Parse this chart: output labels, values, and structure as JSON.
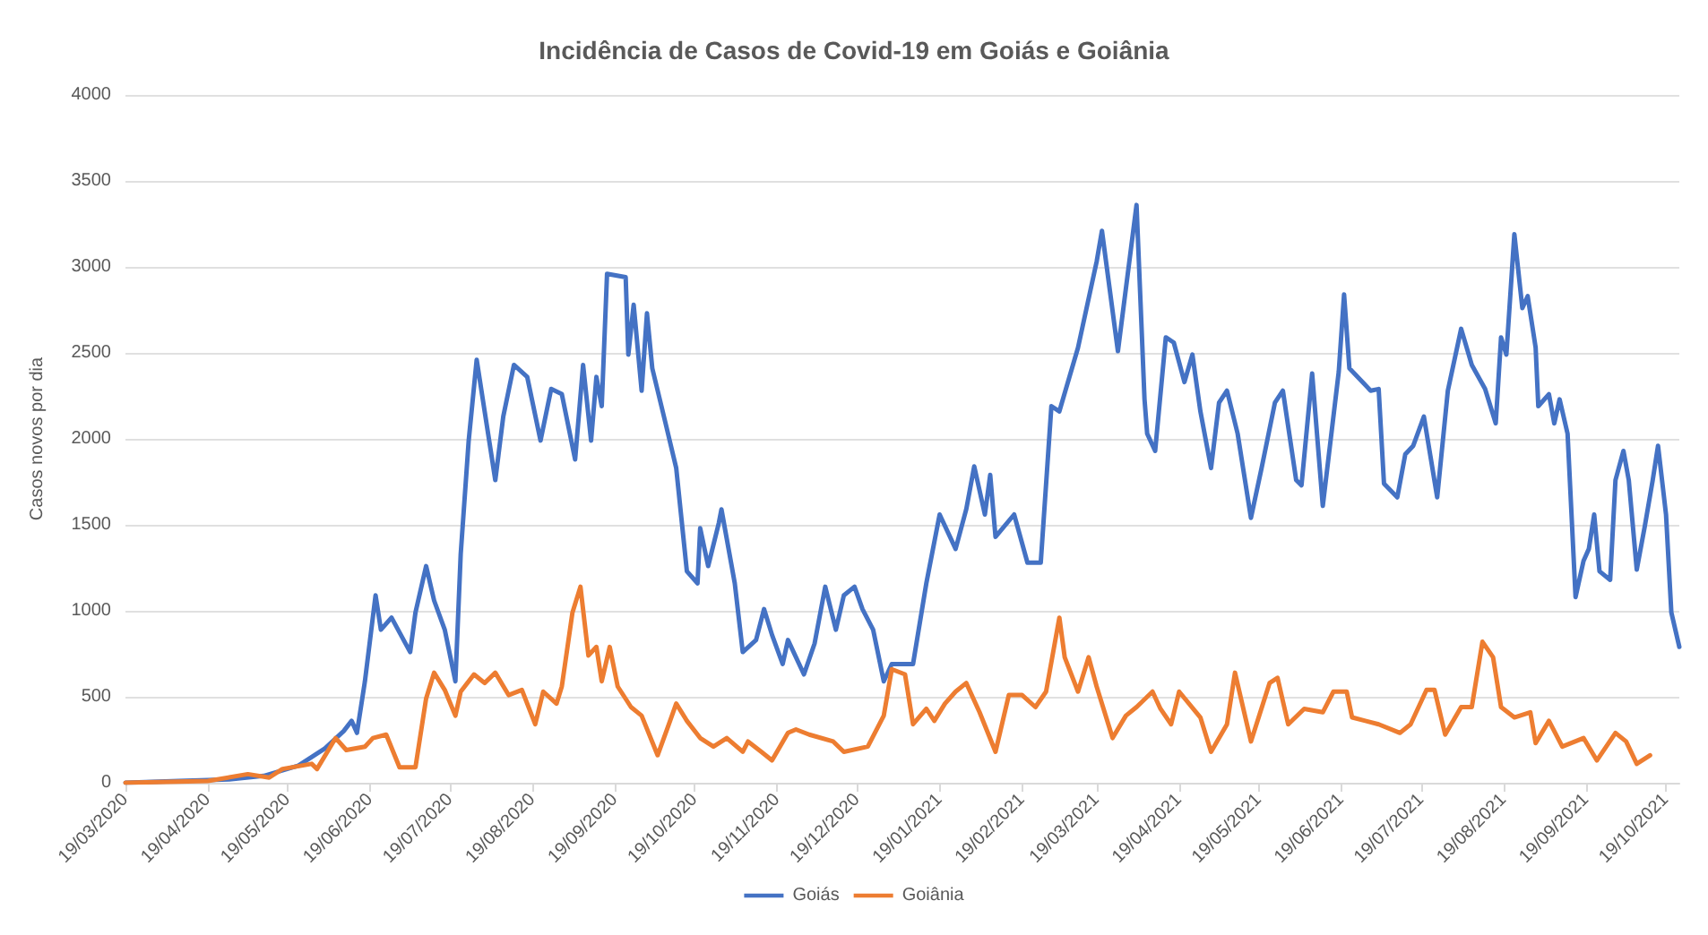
{
  "chart_data": {
    "type": "line",
    "title": "Incidência de Casos de Covid-19 em Goiás e Goiânia",
    "ylabel": "Casos novos por dia",
    "xlim": [
      "2020-03-19",
      "2021-10-24"
    ],
    "xticks": [
      {
        "value": "2020-03-19",
        "label": "19/03/2020"
      },
      {
        "value": "2020-04-19",
        "label": "19/04/2020"
      },
      {
        "value": "2020-05-19",
        "label": "19/05/2020"
      },
      {
        "value": "2020-06-19",
        "label": "19/06/2020"
      },
      {
        "value": "2020-07-19",
        "label": "19/07/2020"
      },
      {
        "value": "2020-08-19",
        "label": "19/08/2020"
      },
      {
        "value": "2020-09-19",
        "label": "19/09/2020"
      },
      {
        "value": "2020-10-19",
        "label": "19/10/2020"
      },
      {
        "value": "2020-11-19",
        "label": "19/11/2020"
      },
      {
        "value": "2020-12-19",
        "label": "19/12/2020"
      },
      {
        "value": "2021-01-19",
        "label": "19/01/2021"
      },
      {
        "value": "2021-02-19",
        "label": "19/02/2021"
      },
      {
        "value": "2021-03-19",
        "label": "19/03/2021"
      },
      {
        "value": "2021-04-19",
        "label": "19/04/2021"
      },
      {
        "value": "2021-05-19",
        "label": "19/05/2021"
      },
      {
        "value": "2021-06-19",
        "label": "19/06/2021"
      },
      {
        "value": "2021-07-19",
        "label": "19/07/2021"
      },
      {
        "value": "2021-08-19",
        "label": "19/08/2021"
      },
      {
        "value": "2021-09-19",
        "label": "19/09/2021"
      },
      {
        "value": "2021-10-19",
        "label": "19/10/2021"
      }
    ],
    "ylim": [
      0,
      4000
    ],
    "yticks": [
      0,
      500,
      1000,
      1500,
      2000,
      2500,
      3000,
      3500,
      4000
    ],
    "grid": "y",
    "legend": "bottom",
    "marker": "none",
    "line_style": "solid",
    "series": [
      {
        "name": "Goiás",
        "color": "#4472c4",
        "x": [
          "2020-03-19",
          "2020-04-08",
          "2020-04-27",
          "2020-05-10",
          "2020-05-23",
          "2020-06-02",
          "2020-06-09",
          "2020-06-12",
          "2020-06-14",
          "2020-06-17",
          "2020-06-21",
          "2020-06-23",
          "2020-06-27",
          "2020-07-04",
          "2020-07-06",
          "2020-07-10",
          "2020-07-13",
          "2020-07-17",
          "2020-07-21",
          "2020-07-23",
          "2020-07-26",
          "2020-07-29",
          "2020-08-01",
          "2020-08-05",
          "2020-08-08",
          "2020-08-12",
          "2020-08-17",
          "2020-08-22",
          "2020-08-26",
          "2020-08-30",
          "2020-09-04",
          "2020-09-07",
          "2020-09-10",
          "2020-09-12",
          "2020-09-14",
          "2020-09-16",
          "2020-09-23",
          "2020-09-24",
          "2020-09-26",
          "2020-09-29",
          "2020-10-01",
          "2020-10-03",
          "2020-10-08",
          "2020-10-12",
          "2020-10-16",
          "2020-10-20",
          "2020-10-21",
          "2020-10-24",
          "2020-10-28",
          "2020-10-29",
          "2020-11-03",
          "2020-11-06",
          "2020-11-11",
          "2020-11-14",
          "2020-11-17",
          "2020-11-21",
          "2020-11-23",
          "2020-11-29",
          "2020-12-03",
          "2020-12-07",
          "2020-12-11",
          "2020-12-14",
          "2020-12-18",
          "2020-12-21",
          "2020-12-25",
          "2020-12-29",
          "2021-01-01",
          "2021-01-09",
          "2021-01-14",
          "2021-01-19",
          "2021-01-25",
          "2021-01-29",
          "2021-02-01",
          "2021-02-05",
          "2021-02-07",
          "2021-02-09",
          "2021-02-16",
          "2021-02-21",
          "2021-02-26",
          "2021-03-02",
          "2021-03-05",
          "2021-03-12",
          "2021-03-19",
          "2021-03-21",
          "2021-03-27",
          "2021-04-03",
          "2021-04-06",
          "2021-04-07",
          "2021-04-10",
          "2021-04-14",
          "2021-04-17",
          "2021-04-21",
          "2021-04-24",
          "2021-04-27",
          "2021-05-01",
          "2021-05-04",
          "2021-05-07",
          "2021-05-11",
          "2021-05-16",
          "2021-05-20",
          "2021-05-25",
          "2021-05-28",
          "2021-06-02",
          "2021-06-04",
          "2021-06-08",
          "2021-06-12",
          "2021-06-18",
          "2021-06-20",
          "2021-06-22",
          "2021-06-30",
          "2021-07-03",
          "2021-07-05",
          "2021-07-10",
          "2021-07-13",
          "2021-07-16",
          "2021-07-20",
          "2021-07-25",
          "2021-07-29",
          "2021-08-03",
          "2021-08-07",
          "2021-08-12",
          "2021-08-16",
          "2021-08-18",
          "2021-08-20",
          "2021-08-23",
          "2021-08-26",
          "2021-08-28",
          "2021-08-31",
          "2021-09-01",
          "2021-09-05",
          "2021-09-07",
          "2021-09-09",
          "2021-09-12",
          "2021-09-15",
          "2021-09-18",
          "2021-09-20",
          "2021-09-22",
          "2021-09-24",
          "2021-09-28",
          "2021-09-30",
          "2021-10-03",
          "2021-10-05",
          "2021-10-08",
          "2021-10-11",
          "2021-10-14",
          "2021-10-16",
          "2021-10-19",
          "2021-10-21",
          "2021-10-24"
        ],
        "values": [
          0,
          10,
          20,
          40,
          100,
          200,
          300,
          360,
          290,
          590,
          1090,
          890,
          960,
          760,
          990,
          1260,
          1060,
          890,
          590,
          1330,
          1990,
          2460,
          2160,
          1760,
          2130,
          2430,
          2360,
          1990,
          2290,
          2260,
          1880,
          2430,
          1990,
          2360,
          2190,
          2960,
          2940,
          2490,
          2780,
          2280,
          2730,
          2410,
          2090,
          1830,
          1230,
          1160,
          1480,
          1260,
          1510,
          1590,
          1160,
          760,
          830,
          1010,
          860,
          690,
          830,
          630,
          810,
          1140,
          890,
          1090,
          1140,
          1010,
          890,
          590,
          690,
          690,
          1160,
          1560,
          1360,
          1590,
          1840,
          1560,
          1790,
          1430,
          1560,
          1280,
          1280,
          2190,
          2160,
          2530,
          3030,
          3210,
          2510,
          3360,
          2230,
          2030,
          1930,
          2590,
          2560,
          2330,
          2490,
          2160,
          1830,
          2210,
          2280,
          2030,
          1540,
          1830,
          2210,
          2280,
          1760,
          1730,
          2380,
          1610,
          2390,
          2840,
          2410,
          2280,
          2290,
          1740,
          1660,
          1910,
          1960,
          2130,
          1660,
          2280,
          2640,
          2430,
          2290,
          2090,
          2590,
          2490,
          3190,
          2760,
          2830,
          2530,
          2190,
          2260,
          2090,
          2230,
          2030,
          1080,
          1290,
          1360,
          1560,
          1230,
          1180,
          1760,
          1930,
          1760,
          1240,
          1490,
          1760,
          1960,
          1560,
          990,
          790
        ]
      },
      {
        "name": "Goiânia",
        "color": "#ed7d31",
        "x": [
          "2020-03-19",
          "2020-04-19",
          "2020-05-04",
          "2020-05-12",
          "2020-05-17",
          "2020-05-28",
          "2020-05-30",
          "2020-06-06",
          "2020-06-10",
          "2020-06-17",
          "2020-06-20",
          "2020-06-25",
          "2020-06-30",
          "2020-07-06",
          "2020-07-10",
          "2020-07-13",
          "2020-07-17",
          "2020-07-21",
          "2020-07-23",
          "2020-07-28",
          "2020-08-01",
          "2020-08-05",
          "2020-08-10",
          "2020-08-15",
          "2020-08-20",
          "2020-08-23",
          "2020-08-28",
          "2020-08-30",
          "2020-09-03",
          "2020-09-06",
          "2020-09-09",
          "2020-09-12",
          "2020-09-14",
          "2020-09-17",
          "2020-09-20",
          "2020-09-25",
          "2020-09-29",
          "2020-10-05",
          "2020-10-09",
          "2020-10-12",
          "2020-10-16",
          "2020-10-21",
          "2020-10-26",
          "2020-10-31",
          "2020-11-06",
          "2020-11-08",
          "2020-11-13",
          "2020-11-17",
          "2020-11-23",
          "2020-11-26",
          "2020-12-01",
          "2020-12-10",
          "2020-12-14",
          "2020-12-23",
          "2020-12-29",
          "2021-01-01",
          "2021-01-06",
          "2021-01-09",
          "2021-01-14",
          "2021-01-17",
          "2021-01-21",
          "2021-01-25",
          "2021-01-29",
          "2021-02-03",
          "2021-02-09",
          "2021-02-14",
          "2021-02-19",
          "2021-02-24",
          "2021-02-28",
          "2021-03-05",
          "2021-03-07",
          "2021-03-12",
          "2021-03-16",
          "2021-03-19",
          "2021-03-25",
          "2021-03-30",
          "2021-04-03",
          "2021-04-09",
          "2021-04-12",
          "2021-04-16",
          "2021-04-19",
          "2021-04-27",
          "2021-05-01",
          "2021-05-07",
          "2021-05-10",
          "2021-05-16",
          "2021-05-23",
          "2021-05-26",
          "2021-05-30",
          "2021-06-05",
          "2021-06-12",
          "2021-06-16",
          "2021-06-21",
          "2021-06-23",
          "2021-07-03",
          "2021-07-11",
          "2021-07-15",
          "2021-07-21",
          "2021-07-24",
          "2021-07-28",
          "2021-08-03",
          "2021-08-07",
          "2021-08-11",
          "2021-08-15",
          "2021-08-18",
          "2021-08-23",
          "2021-08-29",
          "2021-08-31",
          "2021-09-05",
          "2021-09-10",
          "2021-09-18",
          "2021-09-23",
          "2021-09-30",
          "2021-10-04",
          "2021-10-08",
          "2021-10-13"
        ],
        "values": [
          0,
          10,
          50,
          30,
          80,
          110,
          80,
          260,
          190,
          210,
          260,
          280,
          90,
          90,
          490,
          640,
          540,
          390,
          530,
          630,
          580,
          640,
          510,
          540,
          340,
          530,
          460,
          560,
          990,
          1140,
          740,
          790,
          590,
          790,
          560,
          440,
          390,
          160,
          330,
          460,
          360,
          260,
          210,
          260,
          180,
          240,
          180,
          130,
          290,
          310,
          280,
          240,
          180,
          210,
          390,
          660,
          630,
          340,
          430,
          360,
          460,
          530,
          580,
          410,
          180,
          510,
          510,
          440,
          530,
          960,
          730,
          530,
          730,
          560,
          260,
          390,
          440,
          530,
          430,
          340,
          530,
          380,
          180,
          340,
          640,
          240,
          580,
          610,
          340,
          430,
          410,
          530,
          530,
          380,
          340,
          290,
          340,
          540,
          540,
          280,
          440,
          440,
          820,
          730,
          440,
          380,
          410,
          230,
          360,
          210,
          260,
          130,
          290,
          240,
          110,
          160
        ]
      }
    ]
  }
}
